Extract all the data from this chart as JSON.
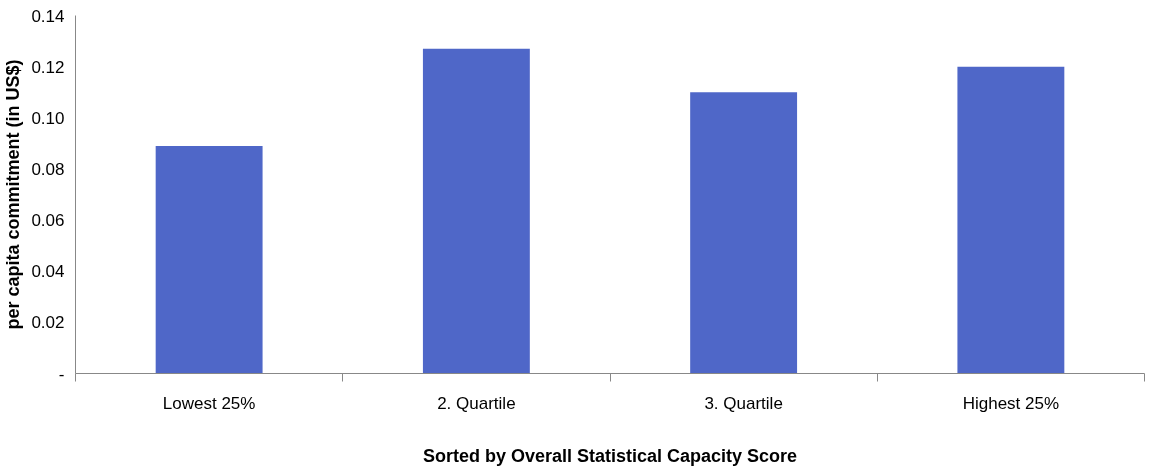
{
  "chart_data": {
    "type": "bar",
    "xlabel": "Sorted by Overall Statistical Capacity Score",
    "ylabel": "per capita commitment (in US$)",
    "categories": [
      "Lowest 25%",
      "2. Quartile",
      "3. Quartile",
      "Highest 25%"
    ],
    "values": [
      0.089,
      0.127,
      0.11,
      0.12
    ],
    "color": "#4f67c8",
    "ylim": [
      0,
      0.14
    ],
    "yticks": [
      {
        "value": 0,
        "label": "-"
      },
      0.02,
      0.04,
      0.06,
      0.08,
      {
        "value": 0.1,
        "label": "0.10"
      },
      0.12,
      0.14
    ],
    "grid": false
  }
}
